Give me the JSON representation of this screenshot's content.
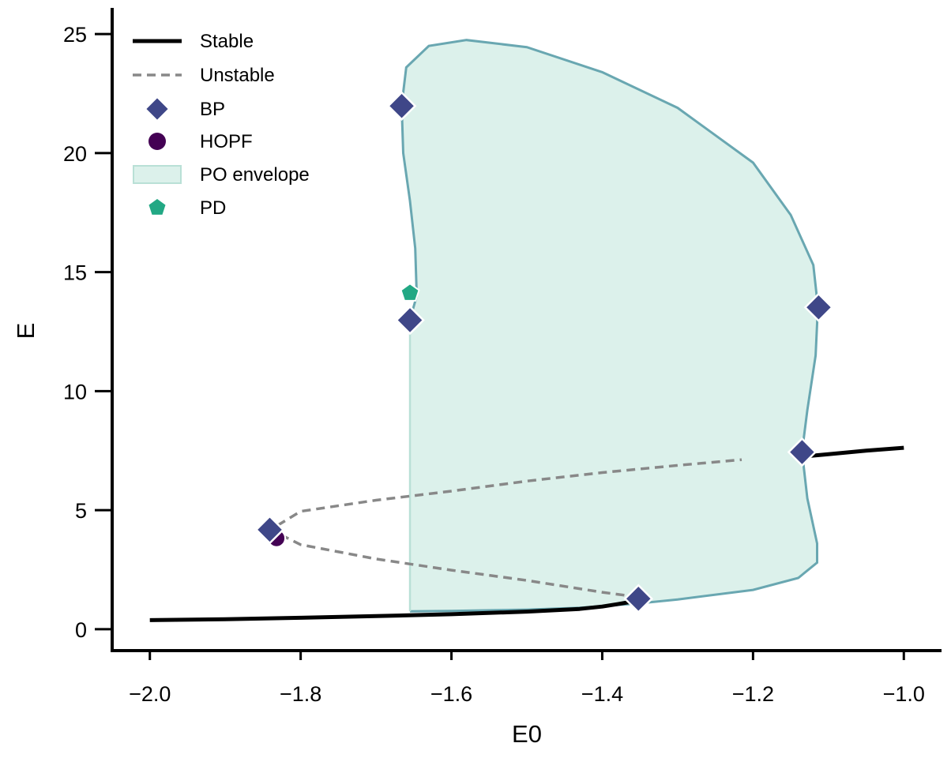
{
  "chart_data": {
    "type": "line",
    "title": "",
    "xlabel": "E0",
    "ylabel": "E",
    "xlim": [
      -2.05,
      -0.95
    ],
    "ylim": [
      -0.9,
      26.1
    ],
    "grid": false,
    "legend_placement": "top-left",
    "x_ticks": [
      -2.0,
      -1.8,
      -1.6,
      -1.4,
      -1.2,
      -1.0
    ],
    "x_tick_labels": [
      "−2.0",
      "−1.8",
      "−1.6",
      "−1.4",
      "−1.2",
      "−1.0"
    ],
    "y_ticks": [
      0,
      5,
      10,
      15,
      20,
      25
    ],
    "y_tick_labels": [
      "0",
      "5",
      "10",
      "15",
      "20",
      "25"
    ],
    "colors": {
      "stable": "#000000",
      "unstable": "#888888",
      "bp": "#3f4788",
      "hopf": "#440154",
      "pd": "#22a884",
      "envelope_fill": "#dcf1eb",
      "envelope_edge": "#69a7b1"
    },
    "legend": [
      {
        "key": "stable",
        "label": "Stable",
        "marker": "solid-line"
      },
      {
        "key": "unstable",
        "label": "Unstable",
        "marker": "dashed-line"
      },
      {
        "key": "bp",
        "label": "BP",
        "marker": "diamond"
      },
      {
        "key": "hopf",
        "label": "HOPF",
        "marker": "circle"
      },
      {
        "key": "envelope",
        "label": "PO envelope",
        "marker": "patch"
      },
      {
        "key": "pd",
        "label": "PD",
        "marker": "pentagon"
      }
    ],
    "series": [
      {
        "key": "stable-lower",
        "style": "stable",
        "x": [
          -2.0,
          -1.9,
          -1.8,
          -1.7,
          -1.6,
          -1.5,
          -1.43,
          -1.4,
          -1.38,
          -1.36,
          -1.352
        ],
        "y": [
          0.38,
          0.42,
          0.48,
          0.55,
          0.63,
          0.74,
          0.85,
          0.95,
          1.05,
          1.16,
          1.22
        ]
      },
      {
        "key": "stable-upper",
        "style": "stable",
        "x": [
          -1.135,
          -1.1,
          -1.05,
          -1.0
        ],
        "y": [
          7.25,
          7.35,
          7.5,
          7.62
        ]
      },
      {
        "key": "unstable-branch",
        "style": "unstable",
        "x": [
          -1.352,
          -1.4,
          -1.5,
          -1.6,
          -1.7,
          -1.8,
          -1.84,
          -1.8,
          -1.7,
          -1.6,
          -1.5,
          -1.4,
          -1.3,
          -1.215
        ],
        "y": [
          1.35,
          1.55,
          2.05,
          2.48,
          2.95,
          3.55,
          4.18,
          4.95,
          5.42,
          5.8,
          6.22,
          6.58,
          6.88,
          7.12
        ]
      }
    ],
    "po_envelope": {
      "upper": {
        "x": [
          -1.655,
          -1.646,
          -1.648,
          -1.655,
          -1.664,
          -1.666,
          -1.66,
          -1.63,
          -1.58,
          -1.5,
          -1.4,
          -1.3,
          -1.2,
          -1.15,
          -1.12,
          -1.114,
          -1.117,
          -1.128,
          -1.135
        ],
        "y": [
          13.0,
          14.0,
          16.0,
          18.0,
          20.0,
          22.0,
          23.6,
          24.5,
          24.75,
          24.45,
          23.4,
          21.9,
          19.6,
          17.4,
          15.3,
          13.55,
          11.5,
          9.2,
          7.45
        ]
      },
      "lower": {
        "x": [
          -1.655,
          -1.6,
          -1.5,
          -1.43,
          -1.352,
          -1.3,
          -1.2,
          -1.14,
          -1.115,
          -1.115,
          -1.128,
          -1.135
        ],
        "y": [
          0.75,
          0.77,
          0.82,
          0.9,
          1.08,
          1.25,
          1.65,
          2.15,
          2.8,
          3.6,
          5.5,
          7.45
        ]
      },
      "edge_x": -1.655
    },
    "points": {
      "bp": [
        {
          "x": -1.666,
          "y": 21.98
        },
        {
          "x": -1.655,
          "y": 12.98
        },
        {
          "x": -1.113,
          "y": 13.52
        },
        {
          "x": -1.135,
          "y": 7.44
        },
        {
          "x": -1.841,
          "y": 4.18
        },
        {
          "x": -1.352,
          "y": 1.28
        }
      ],
      "hopf": [
        {
          "x": -1.832,
          "y": 3.82
        }
      ],
      "pd": [
        {
          "x": -1.655,
          "y": 14.12
        }
      ]
    }
  }
}
